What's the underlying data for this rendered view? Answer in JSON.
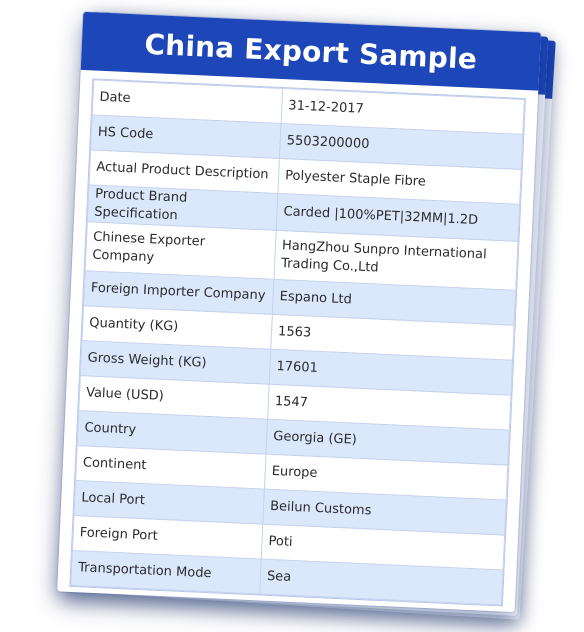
{
  "title": "China Export Sample",
  "accent": "#1d46b8",
  "rows": [
    {
      "label": "Date",
      "value": "31-12-2017"
    },
    {
      "label": "HS Code",
      "value": "5503200000"
    },
    {
      "label": "Actual Product Description",
      "value": "Polyester Staple Fibre"
    },
    {
      "label": "Product Brand Specification",
      "value": "Carded |100%PET|32MM|1.2D"
    },
    {
      "label": "Chinese Exporter Company",
      "value": "HangZhou Sunpro International Trading Co.,Ltd"
    },
    {
      "label": "Foreign Importer Company",
      "value": "Espano Ltd"
    },
    {
      "label": "Quantity (KG)",
      "value": "1563"
    },
    {
      "label": "Gross Weight (KG)",
      "value": "17601"
    },
    {
      "label": "Value (USD)",
      "value": "1547"
    },
    {
      "label": "Country",
      "value": "Georgia (GE)"
    },
    {
      "label": "Continent",
      "value": "Europe"
    },
    {
      "label": "Local Port",
      "value": "Beilun Customs"
    },
    {
      "label": "Foreign Port",
      "value": "Poti"
    },
    {
      "label": "Transportation Mode",
      "value": "Sea"
    }
  ]
}
